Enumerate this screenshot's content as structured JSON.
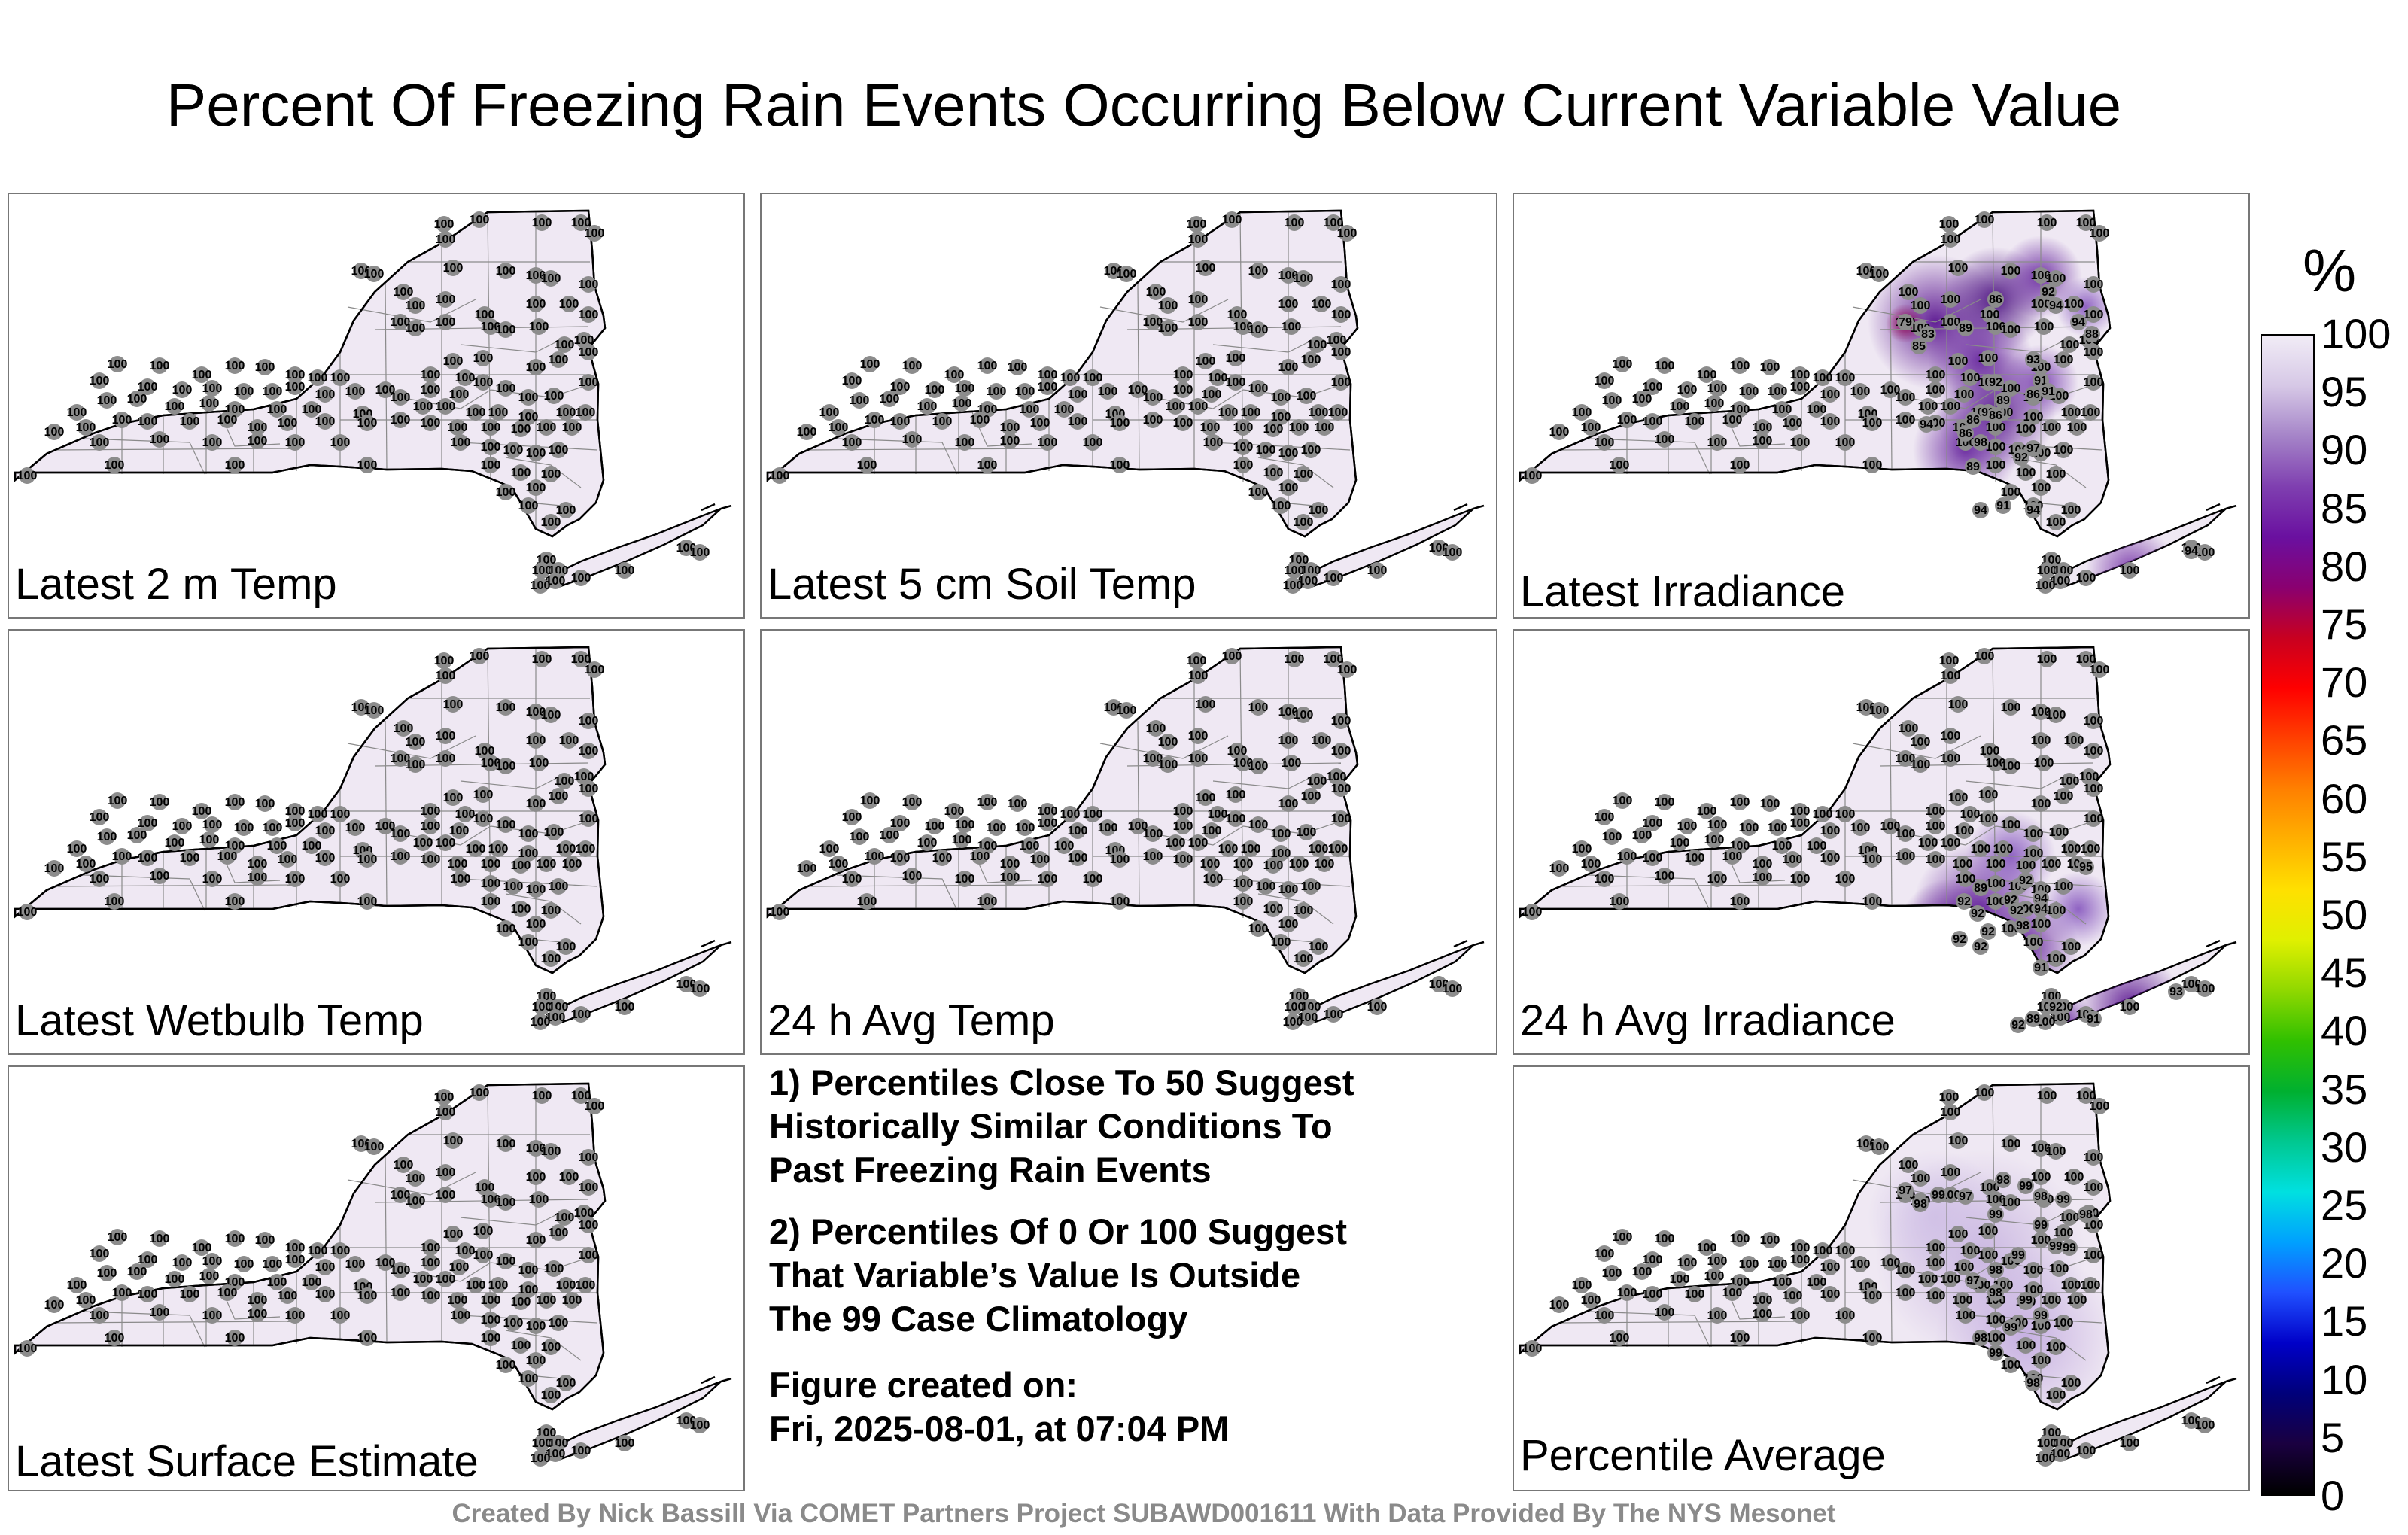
{
  "title": "Percent Of Freezing Rain Events Occurring Below Current Variable Value",
  "panels": [
    {
      "label": "Latest 2 m Temp",
      "mode": "flat",
      "avg": 100
    },
    {
      "label": "Latest 5 cm Soil Temp",
      "mode": "flat",
      "avg": 100
    },
    {
      "label": "Latest Irradiance",
      "mode": "irradiance",
      "avg": 95
    },
    {
      "label": "Latest Wetbulb Temp",
      "mode": "flat",
      "avg": 100
    },
    {
      "label": "24 h Avg Temp",
      "mode": "flat",
      "avg": 100
    },
    {
      "label": "24 h Avg Irradiance",
      "mode": "avgirr",
      "avg": 96
    },
    {
      "label": "Latest Surface Estimate",
      "mode": "flat",
      "avg": 100
    },
    {
      "label": "Percentile Average",
      "mode": "average",
      "avg": 99
    }
  ],
  "notes": {
    "note1": [
      "1) Percentiles Close To 50 Suggest",
      "Historically Similar Conditions To",
      "Past Freezing Rain Events"
    ],
    "note2": [
      "2) Percentiles Of 0 Or 100 Suggest",
      "That Variable’s Value Is Outside",
      "The 99 Case Climatology"
    ],
    "created_label": "Figure created on:",
    "created_date": "Fri, 2025-08-01, at 07:04 PM"
  },
  "footer": "Created By Nick Bassill Via COMET Partners Project SUBAWD001611 With Data Provided By The NYS Mesonet",
  "colorbar": {
    "unit": "%",
    "ticks": [
      "100",
      "95",
      "90",
      "85",
      "80",
      "75",
      "70",
      "65",
      "60",
      "55",
      "50",
      "45",
      "40",
      "35",
      "30",
      "25",
      "20",
      "15",
      "10",
      "5",
      "0"
    ],
    "colors": [
      "#000000",
      "#1a0040",
      "#00007a",
      "#0000c8",
      "#2050ff",
      "#00a0ff",
      "#00e0e0",
      "#00c890",
      "#00b030",
      "#30c000",
      "#90d800",
      "#e0f000",
      "#ffe000",
      "#ffb000",
      "#ff8000",
      "#ff4000",
      "#ff0000",
      "#c80020",
      "#8a0070",
      "#6a10a0",
      "#7f3fb0",
      "#a584c8",
      "#d6c8e6",
      "#f1ecf6"
    ]
  },
  "stations": {
    "irradiance": [
      "79",
      "83",
      "85",
      "89",
      "86",
      "92",
      "94",
      "94",
      "88",
      "93",
      "91",
      "92",
      "86",
      "91",
      "89",
      "92",
      "86",
      "86",
      "86",
      "98",
      "97",
      "92",
      "89",
      "94",
      "94",
      "91",
      "94",
      "94"
    ],
    "avgirr": [
      "95",
      "92",
      "89",
      "92",
      "94",
      "92",
      "92",
      "92",
      "94",
      "92",
      "92",
      "98",
      "92",
      "91",
      "92",
      "89",
      "92",
      "91",
      "93"
    ],
    "average": [
      "97",
      "98",
      "99",
      "97",
      "98",
      "99",
      "98",
      "99",
      "98",
      "99",
      "99",
      "99",
      "99",
      "98",
      "97",
      "98",
      "99",
      "99",
      "99",
      "98",
      "99",
      "98",
      "99"
    ]
  }
}
